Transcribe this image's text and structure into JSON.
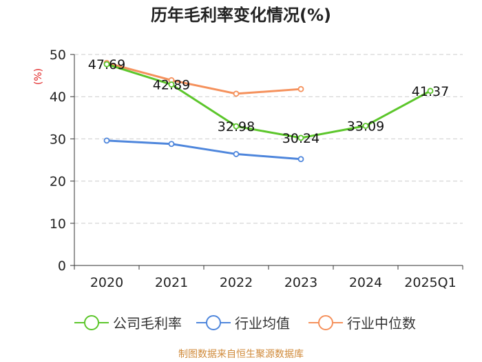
{
  "chart_data": {
    "type": "line",
    "title": "历年毛利率变化情况(%)",
    "ylabel": "(%)",
    "ylim": [
      0,
      50
    ],
    "yticks": [
      0,
      10,
      20,
      30,
      40,
      50
    ],
    "categories": [
      "2020",
      "2021",
      "2022",
      "2023",
      "2024",
      "2025Q1"
    ],
    "grid": true,
    "legend_position": "bottom",
    "series": [
      {
        "name": "公司毛利率",
        "color": "#5cc62b",
        "values": [
          47.69,
          42.89,
          32.98,
          30.24,
          33.09,
          41.37
        ],
        "labels": [
          "47.69",
          "42.89",
          "32.98",
          "30.24",
          "33.09",
          "41.37"
        ]
      },
      {
        "name": "行业均值",
        "color": "#4e86dc",
        "values": [
          29.6,
          28.8,
          26.4,
          25.2,
          null,
          null
        ]
      },
      {
        "name": "行业中位数",
        "color": "#f5915c",
        "values": [
          48.0,
          43.9,
          40.7,
          41.8,
          null,
          null
        ]
      }
    ],
    "source": "制图数据来自恒生聚源数据库"
  }
}
